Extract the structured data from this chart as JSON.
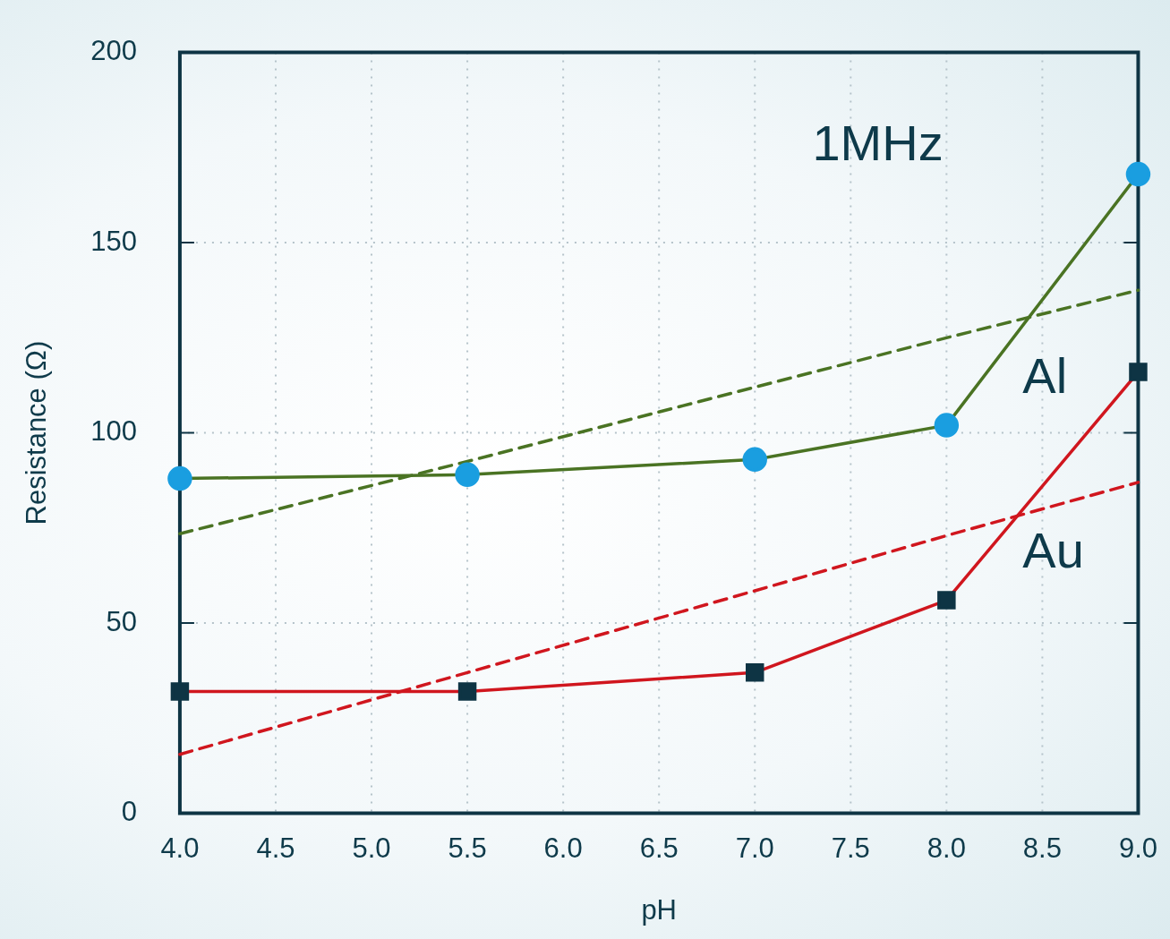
{
  "chart_data": {
    "type": "line",
    "xlabel": "pH",
    "ylabel": "Resistance (Ω)",
    "annotations": [
      "1MHz"
    ],
    "xlim": [
      4,
      9
    ],
    "xticks": [
      {
        "value": 4,
        "label": "4.0"
      },
      {
        "value": 4.5,
        "label": "4.5"
      },
      {
        "value": 5,
        "label": "5.0"
      },
      {
        "value": 5.5,
        "label": "5.5"
      },
      {
        "value": 6,
        "label": "6.0"
      },
      {
        "value": 6.5,
        "label": "6.5"
      },
      {
        "value": 7,
        "label": "7.0"
      },
      {
        "value": 7.5,
        "label": "7.5"
      },
      {
        "value": 8,
        "label": "8.0"
      },
      {
        "value": 8.5,
        "label": "8.5"
      },
      {
        "value": 9,
        "label": "9.0"
      }
    ],
    "ylim": [
      0,
      200
    ],
    "yticks": [
      0,
      50,
      100,
      150,
      200
    ],
    "grid": true,
    "legend": false,
    "x": [
      4,
      5.5,
      7,
      8,
      9
    ],
    "series": [
      {
        "name": "Al",
        "color": "#4a7323",
        "colors": [
          "#1a9ee0",
          "#1a9ee0",
          "#1a9ee0",
          "#1a9ee0",
          "#1a9ee0"
        ],
        "marker": "circle",
        "line_style": "solid",
        "values": [
          88,
          89,
          93,
          102,
          168
        ]
      },
      {
        "name": "Au",
        "color": "#d0161e",
        "colors": [
          "#0e3444",
          "#0e3444",
          "#0e3444",
          "#0e3444",
          "#0e3444"
        ],
        "marker": "square",
        "line_style": "solid",
        "values": [
          32,
          32,
          37,
          56,
          116
        ]
      },
      {
        "type": "line",
        "color": "#4a7323",
        "marker": "none",
        "line_style": "dashed",
        "values": [
          73.5,
          92.5,
          112,
          125,
          137.5
        ]
      },
      {
        "type": "line",
        "color": "#d0161e",
        "marker": "none",
        "line_style": "dashed",
        "values": [
          15.5,
          37,
          58.5,
          73,
          87
        ]
      }
    ]
  }
}
